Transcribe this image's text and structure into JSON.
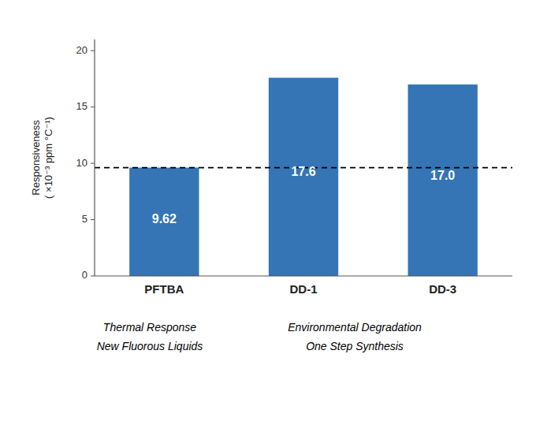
{
  "chart_data": {
    "type": "bar",
    "categories": [
      "PFTBA",
      "DD-1",
      "DD-3"
    ],
    "values": [
      9.62,
      17.6,
      17.0
    ],
    "value_labels": [
      "9.62",
      "17.6",
      "17.0"
    ],
    "data_labels": true,
    "color": "#3575b5",
    "ylim": [
      0,
      21
    ],
    "yticks": [
      0,
      5,
      10,
      15,
      20
    ],
    "ylabel": "Responsiveness\n( ×10⁻³ ppm °C⁻¹)",
    "reference_line": 9.62,
    "grid": false,
    "annotations": [
      "Thermal Response",
      "New Fluorous Liquids",
      "Environmental Degradation",
      "One Step Synthesis"
    ]
  }
}
